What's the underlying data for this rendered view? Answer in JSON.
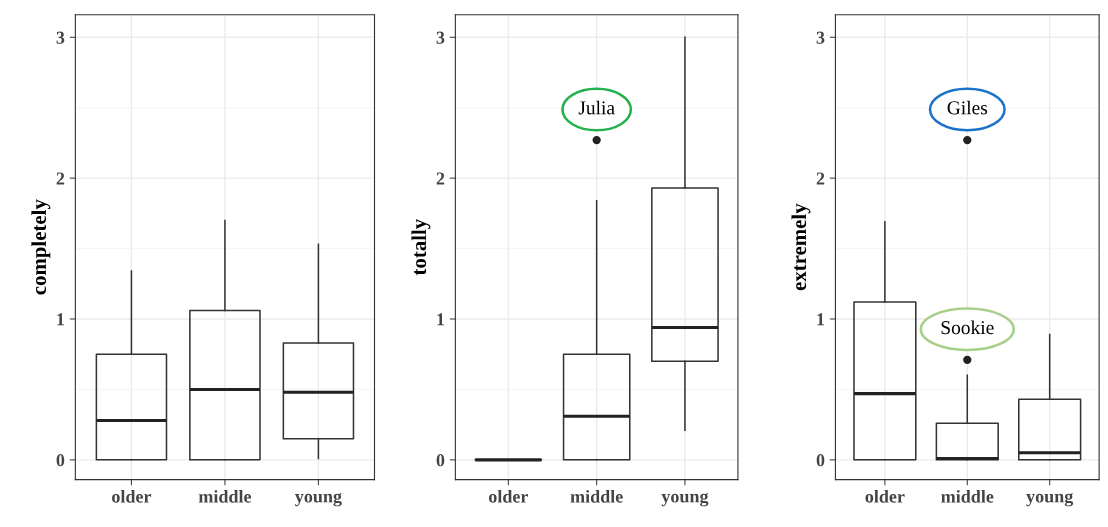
{
  "chart_data": [
    {
      "type": "box",
      "ylabel": "completely",
      "categories": [
        "older",
        "middle",
        "young"
      ],
      "ylim": [
        -0.14,
        3.16
      ],
      "yticks": [
        0,
        1,
        2,
        3
      ],
      "grid": true,
      "boxes": [
        {
          "low": 0,
          "q1": 0,
          "median": 0.28,
          "q3": 0.75,
          "high": 1.34
        },
        {
          "low": 0,
          "q1": 0,
          "median": 0.5,
          "q3": 1.06,
          "high": 1.7
        },
        {
          "low": 0.01,
          "q1": 0.15,
          "median": 0.48,
          "q3": 0.83,
          "high": 1.53
        }
      ]
    },
    {
      "type": "box",
      "ylabel": "totally",
      "categories": [
        "older",
        "middle",
        "young"
      ],
      "ylim": [
        -0.14,
        3.16
      ],
      "yticks": [
        0,
        1,
        2,
        3
      ],
      "grid": true,
      "boxes": [
        {
          "low": 0,
          "q1": 0,
          "median": 0,
          "q3": 0,
          "high": 0
        },
        {
          "low": 0,
          "q1": 0,
          "median": 0.31,
          "q3": 0.75,
          "high": 1.84,
          "outliers": [
            2.27
          ]
        },
        {
          "low": 0.21,
          "q1": 0.7,
          "median": 0.94,
          "q3": 1.93,
          "high": 3.0
        }
      ],
      "annotations": [
        "Julia"
      ]
    },
    {
      "type": "box",
      "ylabel": "extremely",
      "categories": [
        "older",
        "middle",
        "young"
      ],
      "ylim": [
        -0.14,
        3.16
      ],
      "yticks": [
        0,
        1,
        2,
        3
      ],
      "grid": true,
      "boxes": [
        {
          "low": 0,
          "q1": 0,
          "median": 0.47,
          "q3": 1.12,
          "high": 1.69
        },
        {
          "low": 0,
          "q1": 0,
          "median": 0.01,
          "q3": 0.26,
          "high": 0.6,
          "outliers": [
            2.27,
            0.71
          ]
        },
        {
          "low": 0,
          "q1": 0,
          "median": 0.05,
          "q3": 0.43,
          "high": 0.89
        }
      ],
      "annotations": [
        "Giles",
        "Sookie"
      ]
    }
  ]
}
